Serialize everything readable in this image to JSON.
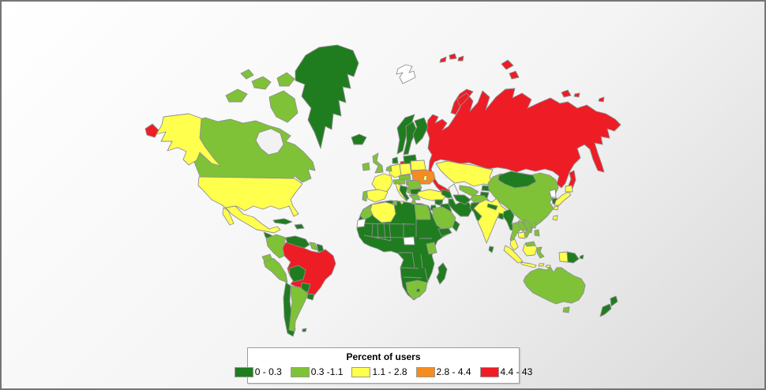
{
  "window": {
    "border_color": "#757575"
  },
  "background": {
    "gradient_start": "#ffffff",
    "gradient_end": "#d8d8d8"
  },
  "legend": {
    "title": "Percent of users"
  },
  "map": {
    "water_color": "#f2f2f2",
    "no_data_color": "#ffffff",
    "border_color": "#8f8f8f"
  },
  "chart_data": {
    "type": "choropleth",
    "title": "Percent of users",
    "unit": "percent of users",
    "buckets": [
      "0 - 0.3",
      "0.3 -1.1",
      "1.1 - 2.8",
      "2.8 - 4.4",
      "4.4 - 43"
    ],
    "bucket_colors": [
      "#1f7d1f",
      "#7fc237",
      "#ffff4d",
      "#f68b1f",
      "#ee1c25"
    ],
    "legend_position": "bottom-center",
    "regions": {
      "russia": 4,
      "greenland": 0,
      "canada": 1,
      "usa": 2,
      "mexico": 2,
      "central-america": 0,
      "cuba": 0,
      "hispaniola": 0,
      "colombia": 1,
      "venezuela": 0,
      "guyana": 1,
      "suriname": 0,
      "ecuador": 1,
      "peru": 1,
      "brazil": 4,
      "bolivia": 0,
      "paraguay": 0,
      "chile": 0,
      "argentina": 1,
      "uruguay": 0,
      "falkland-islands": 0,
      "iceland": 0,
      "united-kingdom": 1,
      "ireland": 1,
      "norway": 0,
      "sweden": 0,
      "finland": 0,
      "denmark": 0,
      "baltic-states": 0,
      "germany": 2,
      "benelux": 1,
      "poland": 2,
      "belarus": 2,
      "ukraine": 3,
      "czech-slovakia": 1,
      "austria-switzerland": 1,
      "hungary": 1,
      "france": 2,
      "spain": 2,
      "portugal": 1,
      "italy": 2,
      "balkans-west": 0,
      "serbia": 1,
      "romania": 1,
      "bulgaria": 0,
      "greece": 1,
      "moldova": 2,
      "turkey": 2,
      "caucasus-states": 0,
      "syria": 0,
      "iraq": 0,
      "iran": 0,
      "israel-jordan": 0,
      "saudi-arabia": 1,
      "yemen": 0,
      "oman": 0,
      "kazakhstan": 2,
      "uzbekistan": 1,
      "turkmenistan": 0,
      "kyrgyzstan": 0,
      "tajikistan": 0,
      "afghanistan": 1,
      "pakistan": 0,
      "india": 2,
      "nepal": 0,
      "bangladesh": 0,
      "sri-lanka": 0,
      "china": 1,
      "mongolia": 0,
      "taiwan": 2,
      "north-korea": "nd",
      "south-korea": 0,
      "japan": 2,
      "myanmar": 0,
      "thailand": 1,
      "laos": 1,
      "vietnam": 1,
      "cambodia": 2,
      "malaysia-peninsula": 2,
      "malaysia-borneo": 1,
      "indonesia": 2,
      "sulawesi": 1,
      "philippines": 1,
      "papua-new-guinea": 0,
      "australia": 1,
      "new-zealand": 0,
      "morocco": 1,
      "western-sahara": "nd",
      "algeria": 2,
      "tunisia": 1,
      "egypt": 1,
      "africa-mainland": 0,
      "south-sudan": "nd",
      "kenya": 1,
      "south-africa": 1,
      "lesotho": 0,
      "madagascar": 0,
      "svalbard": "nd"
    }
  }
}
